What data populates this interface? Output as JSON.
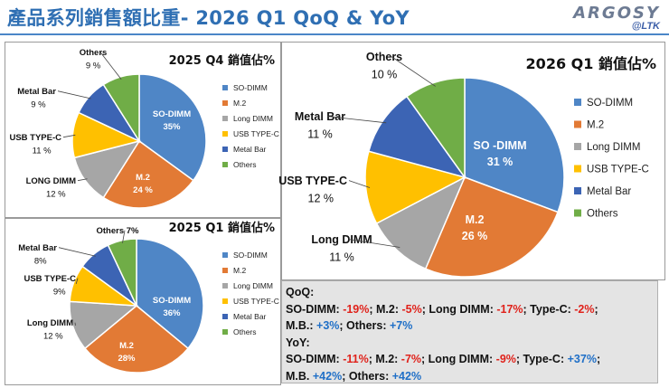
{
  "header": {
    "title": "產品系列銷售額比重- 2026 Q1 QoQ & YoY",
    "logo_brand": "ARGOSY",
    "logo_sub": "@LTK"
  },
  "colors": {
    "SO-DIMM": "#4f86c6",
    "M.2": "#e27a35",
    "Long DIMM": "#a6a6a6",
    "USB TYPE-C": "#ffc000",
    "Metal Bar": "#3c64b4",
    "Others": "#70ad47"
  },
  "chart_data": [
    {
      "type": "pie",
      "title": "2025 Q4 銷值佔%",
      "slices": [
        {
          "name": "SO-DIMM",
          "value": 35,
          "label": "SO-DIMM",
          "value_label": "35%"
        },
        {
          "name": "M.2",
          "value": 24,
          "label": "M.2",
          "value_label": "24 %"
        },
        {
          "name": "Long DIMM",
          "value": 12,
          "label": "LONG DIMM",
          "value_label": "12 %"
        },
        {
          "name": "USB TYPE-C",
          "value": 11,
          "label": "USB TYPE-C",
          "value_label": "11 %"
        },
        {
          "name": "Metal Bar",
          "value": 9,
          "label": "Metal Bar",
          "value_label": "9 %"
        },
        {
          "name": "Others",
          "value": 9,
          "label": "Others",
          "value_label": "9 %"
        }
      ],
      "legend": [
        "SO-DIMM",
        "M.2",
        "Long DIMM",
        "USB TYPE-C",
        "Metal Bar",
        "Others"
      ]
    },
    {
      "type": "pie",
      "title": "2025 Q1 銷值佔%",
      "slices": [
        {
          "name": "SO-DIMM",
          "value": 36,
          "label": "SO-DIMM",
          "value_label": "36%"
        },
        {
          "name": "M.2",
          "value": 28,
          "label": "M.2",
          "value_label": "28%"
        },
        {
          "name": "Long DIMM",
          "value": 12,
          "label": "Long DIMM",
          "value_label": "12 %"
        },
        {
          "name": "USB TYPE-C",
          "value": 9,
          "label": "USB TYPE-C",
          "value_label": "9%"
        },
        {
          "name": "Metal Bar",
          "value": 8,
          "label": "Metal Bar",
          "value_label": "8%"
        },
        {
          "name": "Others",
          "value": 7,
          "label": "Others 7%",
          "value_label": ""
        }
      ],
      "legend": [
        "SO-DIMM",
        "M.2",
        "Long DIMM",
        "USB TYPE-C",
        "Metal Bar",
        "Others"
      ]
    },
    {
      "type": "pie",
      "title": "2026 Q1 銷值佔%",
      "slices": [
        {
          "name": "SO-DIMM",
          "value": 31,
          "label": "SO -DIMM",
          "value_label": "31 %"
        },
        {
          "name": "M.2",
          "value": 26,
          "label": "M.2",
          "value_label": "26 %"
        },
        {
          "name": "Long DIMM",
          "value": 11,
          "label": "Long DIMM",
          "value_label": "11 %"
        },
        {
          "name": "USB TYPE-C",
          "value": 12,
          "label": "USB TYPE-C",
          "value_label": "12 %"
        },
        {
          "name": "Metal Bar",
          "value": 11,
          "label": "Metal Bar",
          "value_label": "11 %"
        },
        {
          "name": "Others",
          "value": 10,
          "label": "Others",
          "value_label": "10 %"
        }
      ],
      "legend": [
        "SO-DIMM",
        "M.2",
        "Long DIMM",
        "USB TYPE-C",
        "Metal Bar",
        "Others"
      ]
    }
  ],
  "notes": {
    "qoq_heading": "QoQ:",
    "qoq_line1": [
      {
        "t": "SO-DIMM: ",
        "c": ""
      },
      {
        "t": "-19%",
        "c": "neg"
      },
      {
        "t": "; M.2: ",
        "c": ""
      },
      {
        "t": "-5%",
        "c": "neg"
      },
      {
        "t": "; Long DIMM: ",
        "c": ""
      },
      {
        "t": "-17%",
        "c": "neg"
      },
      {
        "t": "; Type-C: ",
        "c": ""
      },
      {
        "t": "-2%",
        "c": "neg"
      },
      {
        "t": ";",
        "c": ""
      }
    ],
    "qoq_line2": [
      {
        "t": "M.B.: ",
        "c": ""
      },
      {
        "t": "+3%",
        "c": "pos"
      },
      {
        "t": "; Others: ",
        "c": ""
      },
      {
        "t": "+7%",
        "c": "pos"
      }
    ],
    "yoy_heading": "YoY:",
    "yoy_line1": [
      {
        "t": "SO-DIMM: ",
        "c": ""
      },
      {
        "t": "-11%",
        "c": "neg"
      },
      {
        "t": "; M.2: ",
        "c": ""
      },
      {
        "t": "-7%",
        "c": "neg"
      },
      {
        "t": "; Long DIMM: ",
        "c": ""
      },
      {
        "t": "-9%",
        "c": "neg"
      },
      {
        "t": "; Type-C: ",
        "c": ""
      },
      {
        "t": "+37%",
        "c": "pos"
      },
      {
        "t": ";",
        "c": ""
      }
    ],
    "yoy_line2": [
      {
        "t": "M.B. ",
        "c": ""
      },
      {
        "t": "+42%",
        "c": "pos"
      },
      {
        "t": "; Others: ",
        "c": ""
      },
      {
        "t": "+42%",
        "c": "pos"
      }
    ]
  }
}
